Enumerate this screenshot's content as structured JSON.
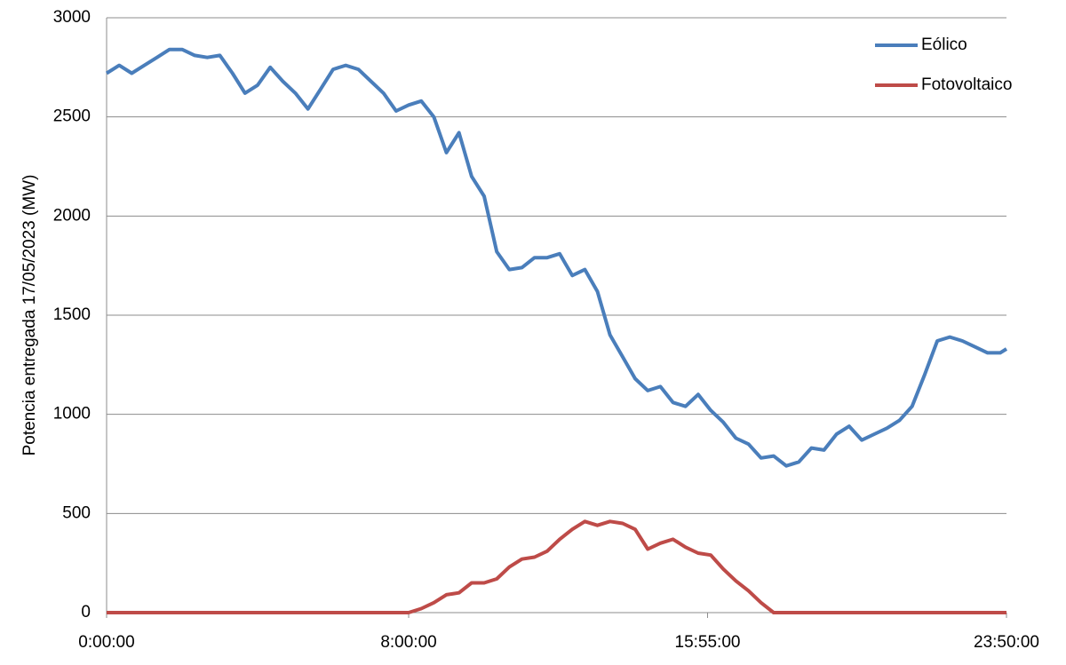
{
  "chart_data": {
    "type": "line",
    "y_label": "Potencia entregada 17/05/2023 (MW)",
    "x": [
      0,
      20,
      40,
      60,
      80,
      100,
      120,
      140,
      160,
      180,
      200,
      220,
      240,
      260,
      280,
      300,
      320,
      340,
      360,
      380,
      400,
      420,
      440,
      460,
      480,
      500,
      520,
      540,
      560,
      580,
      600,
      620,
      640,
      660,
      680,
      700,
      720,
      740,
      760,
      780,
      800,
      820,
      840,
      860,
      880,
      900,
      920,
      940,
      960,
      980,
      1000,
      1020,
      1040,
      1060,
      1080,
      1100,
      1120,
      1140,
      1160,
      1180,
      1200,
      1220,
      1240,
      1260,
      1280,
      1300,
      1320,
      1340,
      1360,
      1380,
      1400,
      1420,
      1430
    ],
    "series": [
      {
        "name": "Eólico",
        "color": "#4a7ebb",
        "values": [
          2720,
          2760,
          2720,
          2760,
          2800,
          2840,
          2840,
          2810,
          2800,
          2810,
          2720,
          2620,
          2660,
          2750,
          2680,
          2620,
          2540,
          2640,
          2740,
          2760,
          2740,
          2680,
          2620,
          2530,
          2560,
          2580,
          2500,
          2320,
          2420,
          2200,
          2100,
          1820,
          1730,
          1740,
          1790,
          1790,
          1810,
          1700,
          1730,
          1620,
          1400,
          1290,
          1180,
          1120,
          1140,
          1060,
          1040,
          1100,
          1020,
          960,
          880,
          850,
          780,
          790,
          740,
          760,
          830,
          820,
          900,
          940,
          870,
          900,
          930,
          970,
          1040,
          1200,
          1370,
          1390,
          1370,
          1340,
          1310,
          1310,
          1330
        ]
      },
      {
        "name": "Fotovoltaico",
        "color": "#be4b48",
        "values": [
          0,
          0,
          0,
          0,
          0,
          0,
          0,
          0,
          0,
          0,
          0,
          0,
          0,
          0,
          0,
          0,
          0,
          0,
          0,
          0,
          0,
          0,
          0,
          0,
          0,
          20,
          50,
          90,
          100,
          150,
          150,
          170,
          230,
          270,
          280,
          310,
          370,
          420,
          460,
          440,
          460,
          450,
          420,
          320,
          350,
          370,
          330,
          300,
          290,
          220,
          160,
          110,
          50,
          0,
          0,
          0,
          0,
          0,
          0,
          0,
          0,
          0,
          0,
          0,
          0,
          0,
          0,
          0,
          0,
          0,
          0,
          0,
          0
        ]
      }
    ],
    "xlim": [
      0,
      1430
    ],
    "xticks": [
      {
        "value": 0,
        "label": "0:00:00"
      },
      {
        "value": 480,
        "label": "8:00:00"
      },
      {
        "value": 955,
        "label": "15:55:00"
      },
      {
        "value": 1430,
        "label": "23:50:00"
      }
    ],
    "ylim": [
      0,
      3000
    ],
    "yticks": [
      0,
      500,
      1000,
      1500,
      2000,
      2500,
      3000
    ],
    "grid": true,
    "legend": "top-right"
  }
}
